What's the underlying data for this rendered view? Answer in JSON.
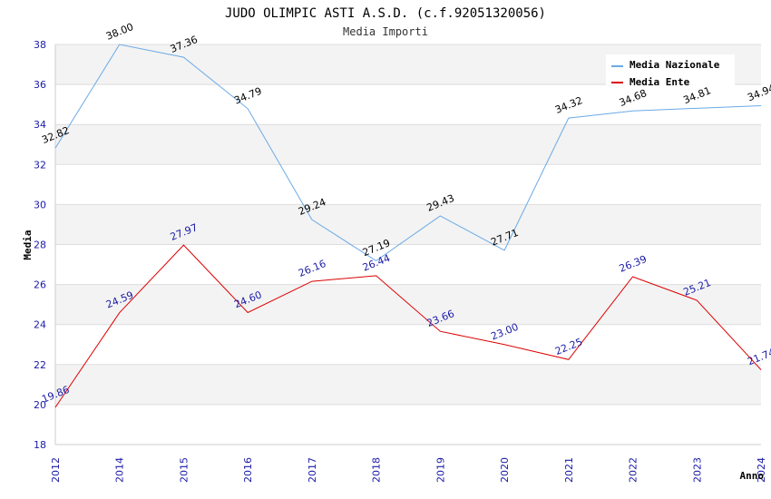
{
  "chart_data": {
    "type": "line",
    "title": "JUDO OLIMPIC ASTI A.S.D. (c.f.92051320056)",
    "subtitle": "Media Importi",
    "xlabel": "Anno",
    "ylabel": "Media",
    "x": [
      "2012",
      "2014",
      "2015",
      "2016",
      "2017",
      "2018",
      "2019",
      "2020",
      "2021",
      "2022",
      "2023",
      "2024"
    ],
    "ylim": [
      18,
      38
    ],
    "yticks": [
      18,
      20,
      22,
      24,
      26,
      28,
      30,
      32,
      34,
      36,
      38
    ],
    "ytick_labels": [
      "18",
      "20",
      "22",
      "24",
      "26",
      "28",
      "30",
      "32",
      "34",
      "36",
      "38"
    ],
    "grid": true,
    "legend_position": "top-right",
    "series": [
      {
        "name": "Media Nazionale",
        "color": "#6aaae6",
        "label_color": "#000000",
        "values": [
          32.82,
          38.0,
          37.36,
          34.79,
          29.24,
          27.19,
          29.43,
          27.71,
          34.32,
          34.68,
          34.81,
          34.94
        ],
        "labels": [
          "32.82",
          "38.00",
          "37.36",
          "34.79",
          "29.24",
          "27.19",
          "29.43",
          "27.71",
          "34.32",
          "34.68",
          "34.81",
          "34.94"
        ]
      },
      {
        "name": "Media Ente",
        "color": "#dd0000",
        "label_color": "#1a1aa6",
        "values": [
          19.86,
          24.59,
          27.97,
          24.6,
          26.16,
          26.44,
          23.66,
          23.0,
          22.25,
          26.39,
          25.21,
          21.74
        ],
        "labels": [
          "19.86",
          "24.59",
          "27.97",
          "24.60",
          "26.16",
          "26.44",
          "23.66",
          "23.00",
          "22.25",
          "26.39",
          "25.21",
          "21.74"
        ]
      }
    ]
  }
}
